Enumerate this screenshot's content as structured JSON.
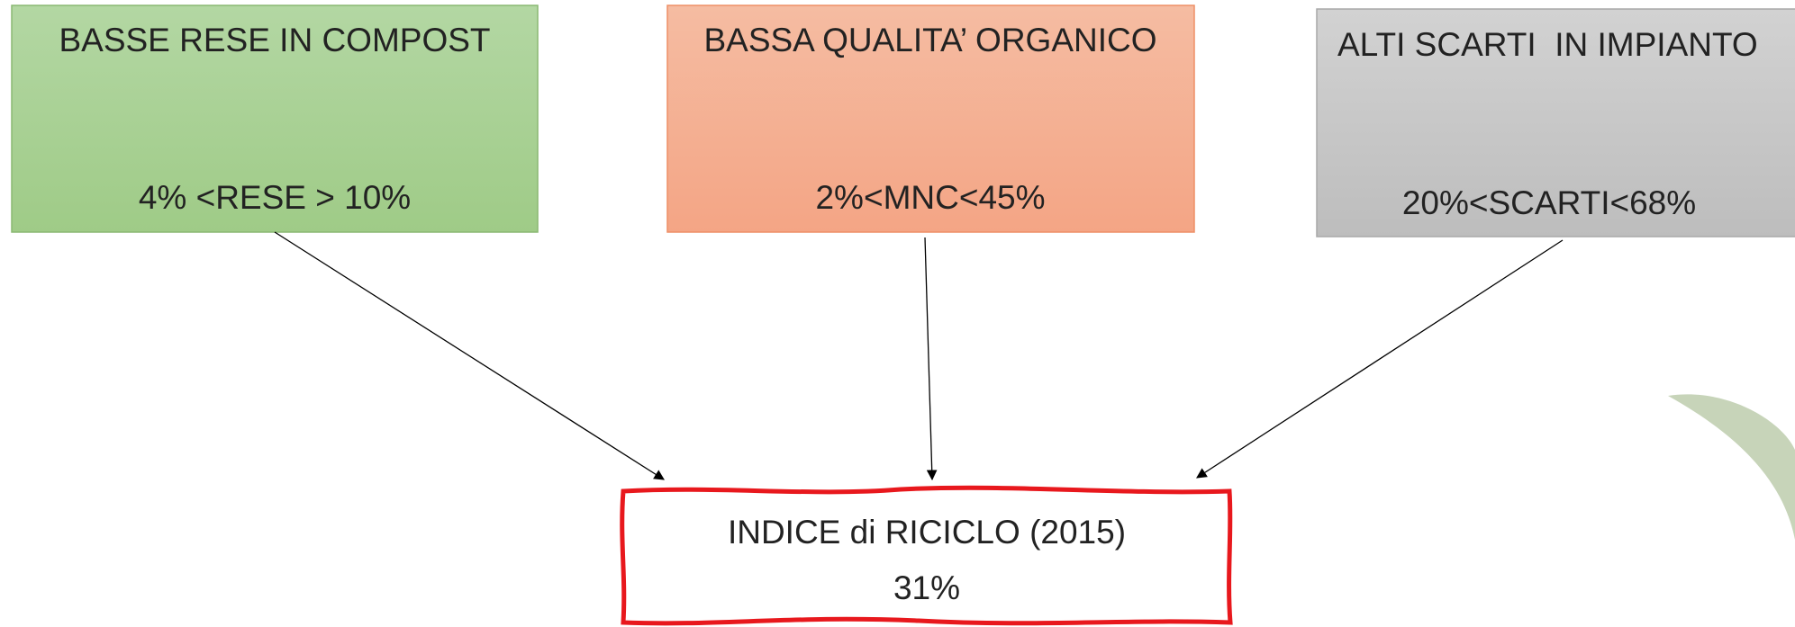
{
  "boxes": [
    {
      "title": "BASSE RESE IN COMPOST",
      "value": "4% <RESE > 10%"
    },
    {
      "title": "BASSA QUALITA’ ORGANICO",
      "value": "2%<MNC<45%"
    },
    {
      "title": "ALTI SCARTI  IN IMPIANTO",
      "value": "20%<SCARTI<68%"
    }
  ],
  "result": {
    "title": "INDICE di RICICLO (2015)",
    "value": "31%"
  }
}
